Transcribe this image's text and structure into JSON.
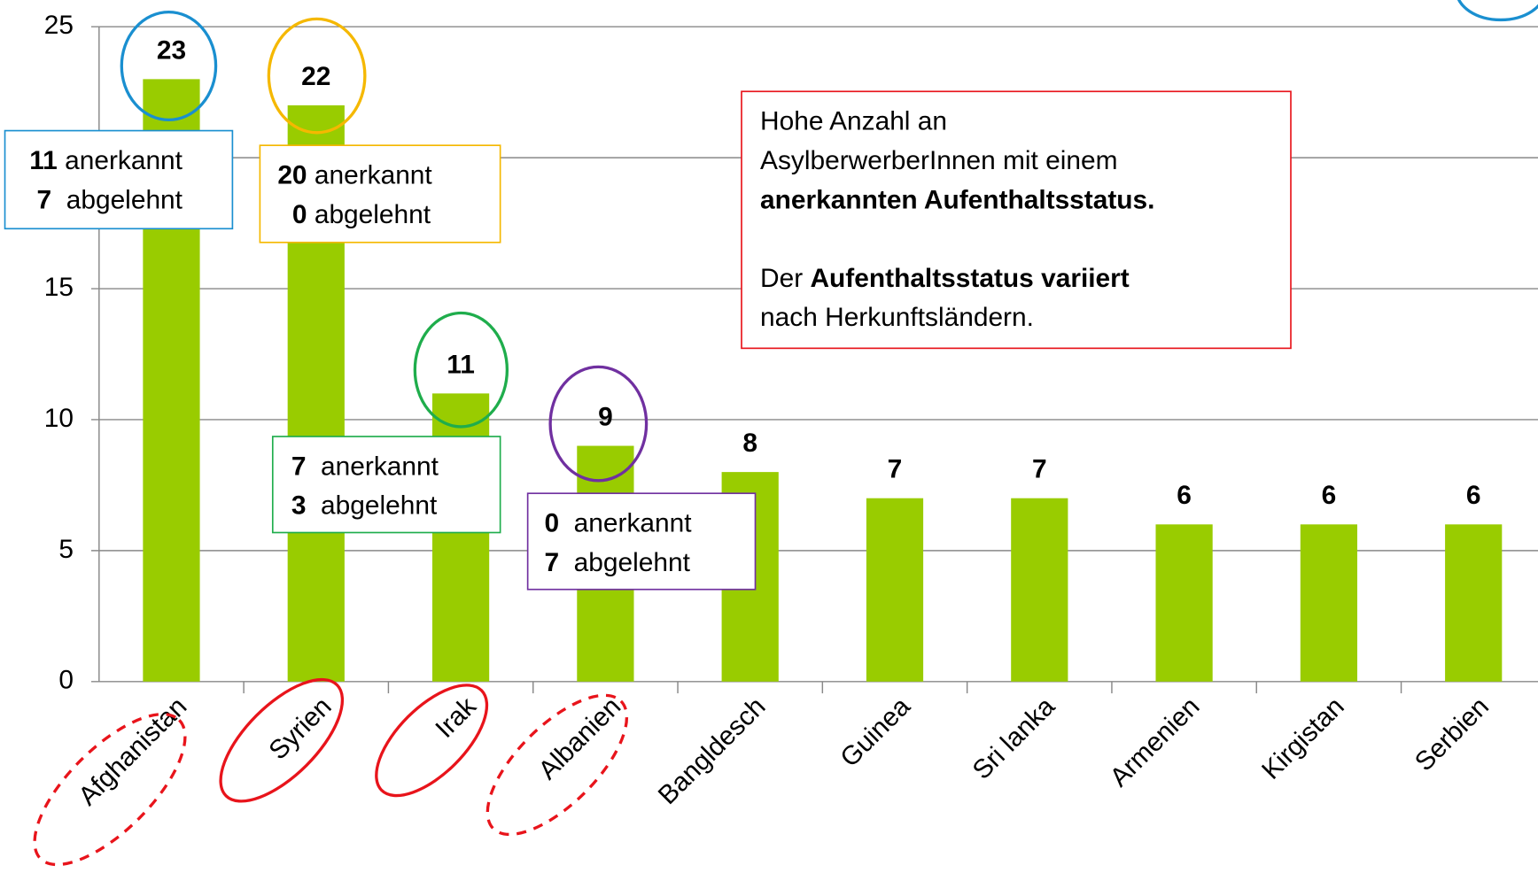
{
  "chart_data": {
    "type": "bar",
    "categories": [
      "Afghanistan",
      "Syrien",
      "Irak",
      "Albanien",
      "Bangldesch",
      "Guinea",
      "Sri lanka",
      "Armenien",
      "Kirgistan",
      "Serbien"
    ],
    "values": [
      23,
      22,
      11,
      9,
      8,
      7,
      7,
      6,
      6,
      6
    ],
    "color": "#99cc00",
    "ylim": [
      0,
      25
    ],
    "yticks": [
      0,
      5,
      10,
      15,
      20,
      25
    ],
    "grid": true,
    "annotations": [
      {
        "color": "#1a8fd0",
        "paragraphs": [
          [
            [
              {
                "b": "11"
              },
              {
                "t": " anerkannt"
              }
            ],
            [
              {
                "b": " 7"
              },
              {
                "t": "  abgelehnt"
              }
            ]
          ]
        ]
      },
      {
        "color": "#f5b800",
        "paragraphs": [
          [
            [
              {
                "b": "20"
              },
              {
                "t": " anerkannt"
              }
            ],
            [
              {
                "b": "  0"
              },
              {
                "t": " abgelehnt"
              }
            ]
          ]
        ]
      },
      {
        "color": "#1fad4c",
        "paragraphs": [
          [
            [
              {
                "b": "7"
              },
              {
                "t": "  anerkannt"
              }
            ],
            [
              {
                "b": "3"
              },
              {
                "t": "  abgelehnt"
              }
            ]
          ]
        ]
      },
      {
        "color": "#7030a0",
        "paragraphs": [
          [
            [
              {
                "b": "0"
              },
              {
                "t": "  anerkannt"
              }
            ],
            [
              {
                "b": "7"
              },
              {
                "t": "  abgelehnt"
              }
            ]
          ]
        ]
      },
      {
        "color": "#e8141b",
        "paragraphs": [
          [
            [
              {
                "t": "Hohe Anzahl an"
              }
            ],
            [
              {
                "t": "AsylberwerberInnen mit einem"
              }
            ],
            [
              {
                "b": "anerkannten Aufenthaltsstatus."
              }
            ]
          ],
          [
            [
              {
                "t": "Der "
              },
              {
                "b": "Aufenthaltsstatus variiert"
              }
            ],
            [
              {
                "t": "nach Herkunftsländern."
              }
            ]
          ]
        ]
      }
    ]
  }
}
